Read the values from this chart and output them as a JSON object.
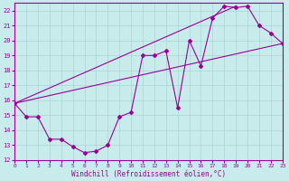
{
  "xlabel": "Windchill (Refroidissement éolien,°C)",
  "bg_color": "#c8ecec",
  "grid_color": "#aad4d4",
  "line_color": "#990099",
  "xmin": 0,
  "xmax": 23,
  "ymin": 12,
  "ymax": 22.5,
  "yticks": [
    12,
    13,
    14,
    15,
    16,
    17,
    18,
    19,
    20,
    21,
    22
  ],
  "xticks": [
    0,
    1,
    2,
    3,
    4,
    5,
    6,
    7,
    8,
    9,
    10,
    11,
    12,
    13,
    14,
    15,
    16,
    17,
    18,
    19,
    20,
    21,
    22,
    23
  ],
  "main_x": [
    0,
    1,
    2,
    3,
    4,
    5,
    6,
    7,
    8,
    9,
    10,
    11,
    12,
    13,
    14,
    15,
    16,
    17,
    18,
    19,
    20,
    21,
    22,
    23
  ],
  "main_y": [
    15.8,
    14.9,
    14.9,
    13.4,
    13.4,
    12.9,
    12.5,
    12.6,
    13.0,
    14.9,
    15.2,
    19.0,
    19.0,
    19.3,
    15.5,
    20.0,
    18.3,
    21.5,
    22.3,
    22.2,
    22.3,
    21.0,
    20.5,
    19.8
  ],
  "upper_line_x": [
    0,
    19
  ],
  "upper_line_y": [
    15.8,
    22.3
  ],
  "lower_line_x": [
    0,
    23
  ],
  "lower_line_y": [
    15.8,
    19.8
  ],
  "xlabel_fontsize": 5.5,
  "tick_fontsize": 5.0
}
